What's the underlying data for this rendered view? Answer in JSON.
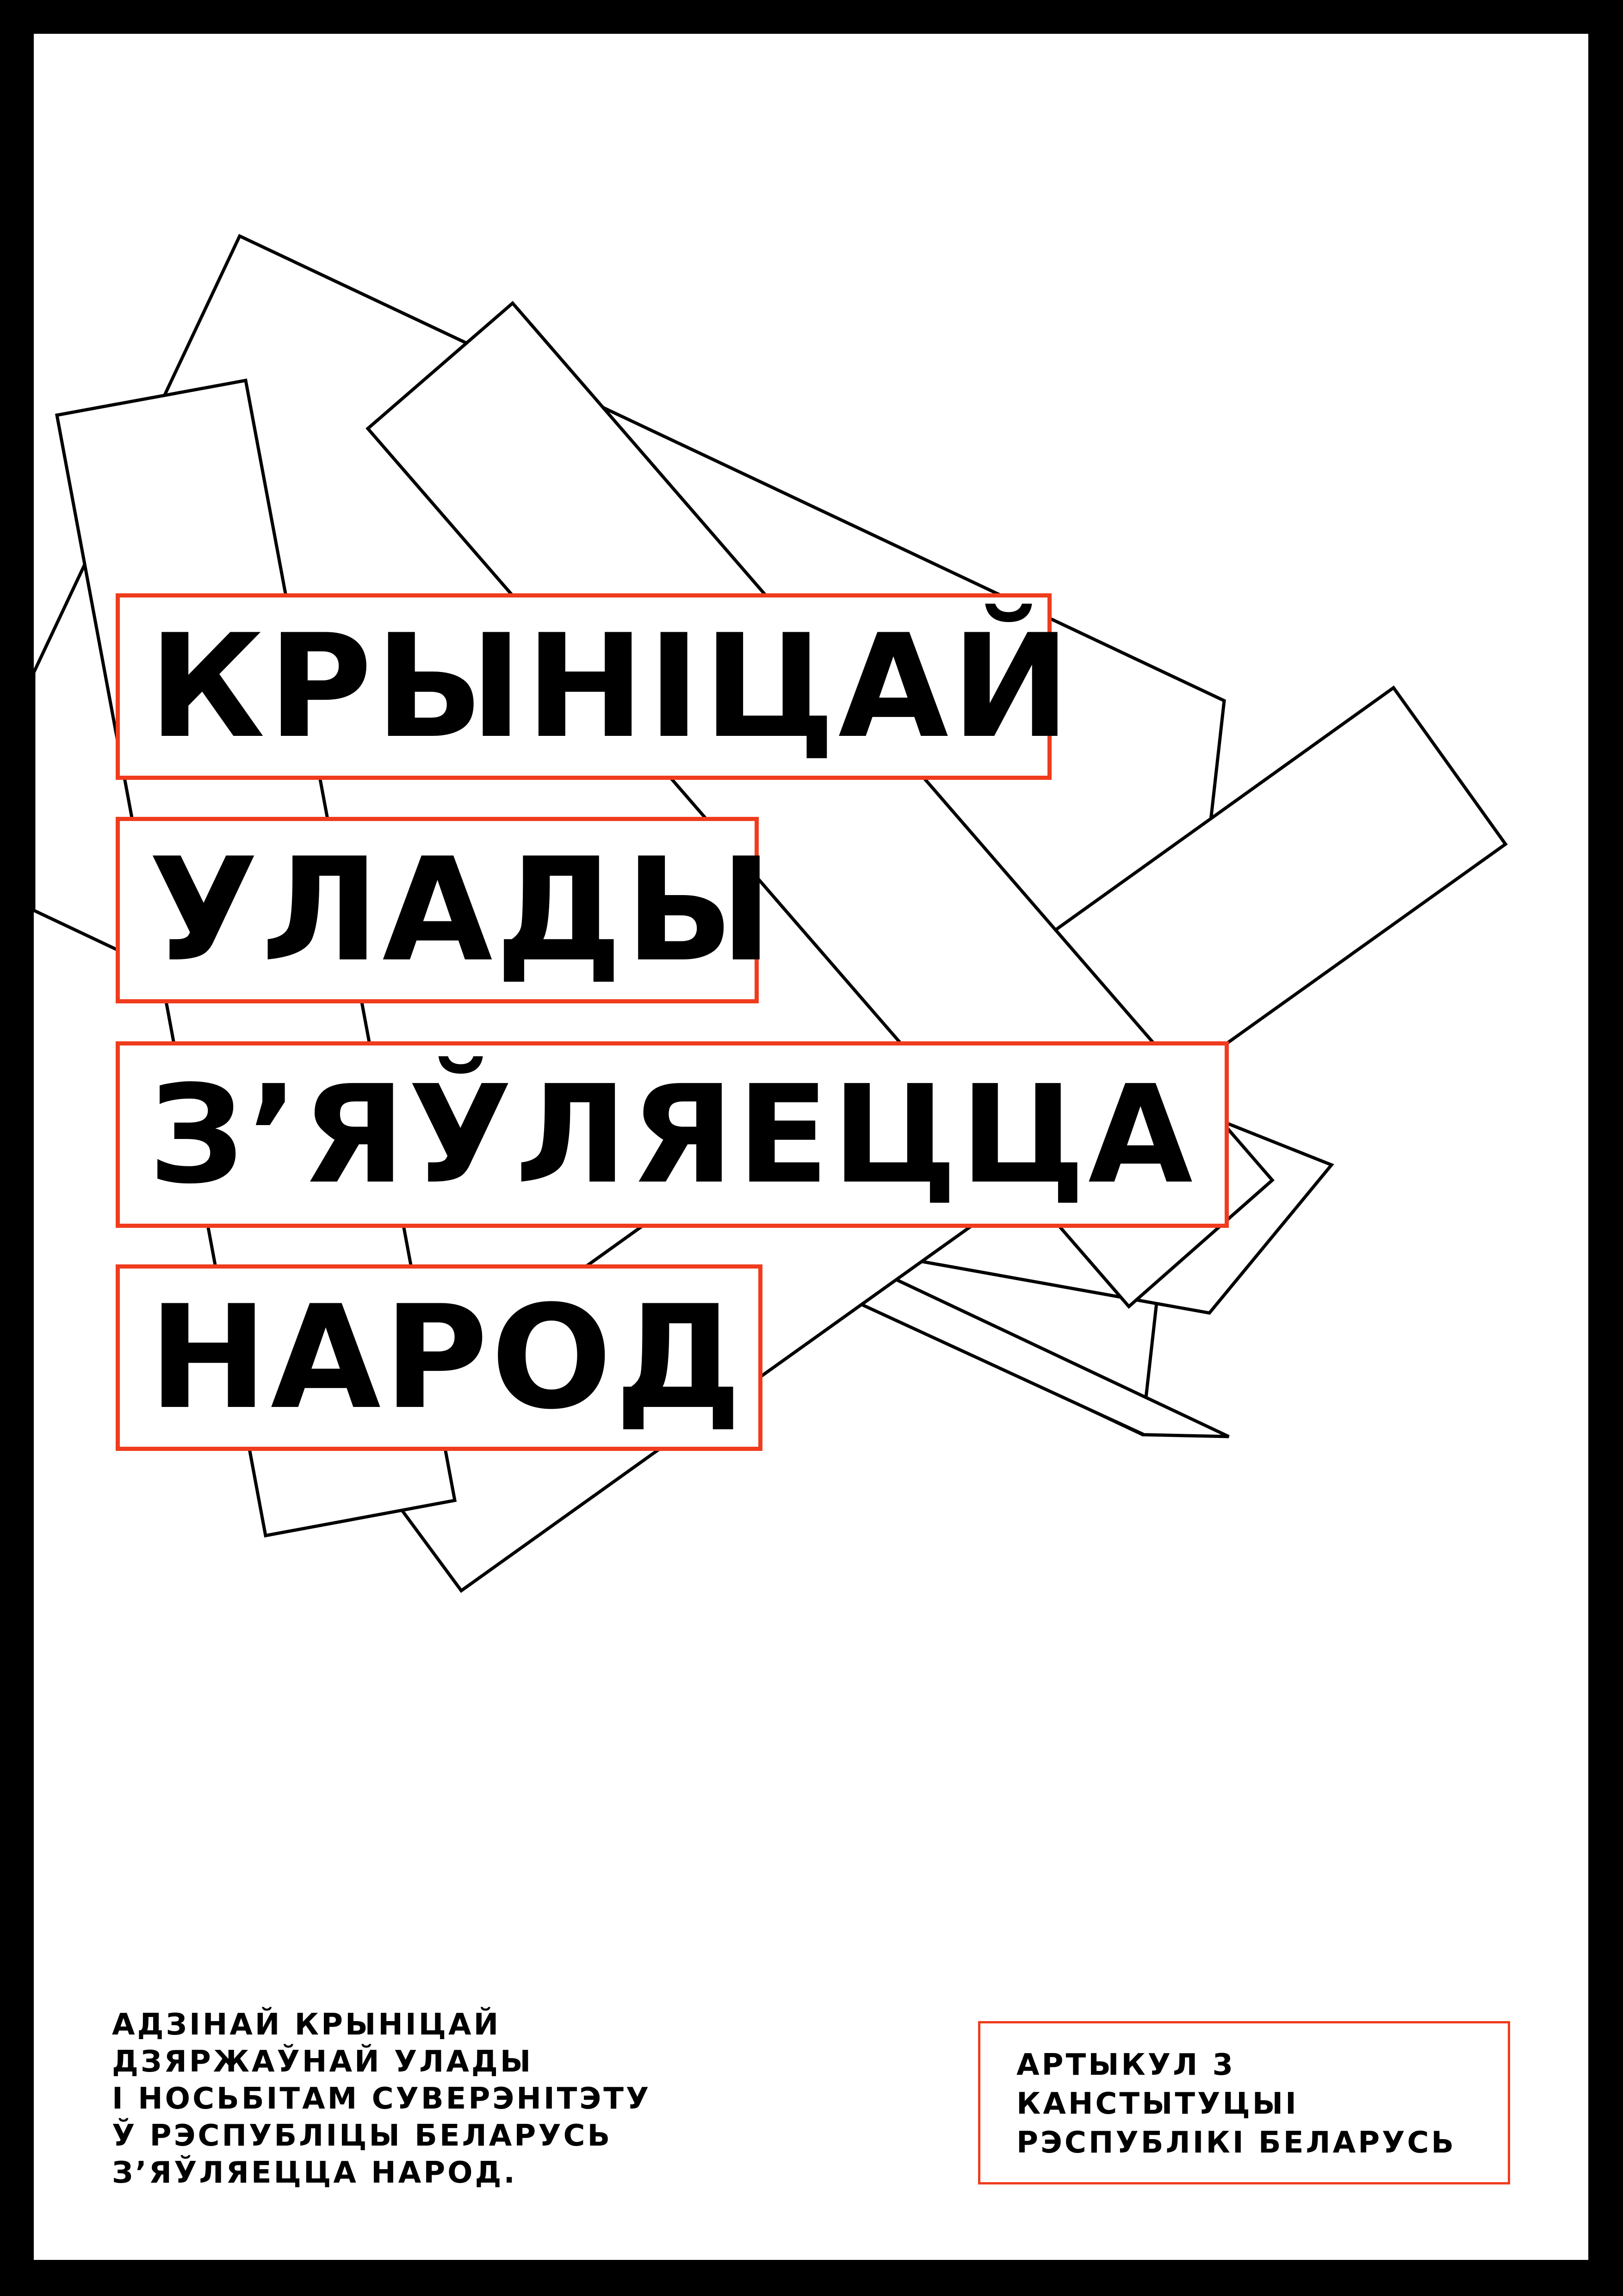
{
  "poster": {
    "headline": [
      "КРЫНІЦАЙ",
      "УЛАДЫ",
      "З’ЯЎЛЯЕЦЦА",
      "НАРОД"
    ],
    "quote_lines": [
      "АДЗІНАЙ КРЫНІЦАЙ",
      "ДЗЯРЖАЎНАЙ УЛАДЫ",
      "І НОСЬБІТАМ СУВЕРЭНІТЭТУ",
      "Ў РЭСПУБЛІЦЫ БЕЛАРУСЬ",
      "З’ЯЎЛЯЕЦЦА НАРОД."
    ],
    "source_lines": [
      "АРТЫКУЛ 3",
      "КАНСТЫТУЦЫІ",
      "РЭСПУБЛІКІ БЕЛАРУСЬ"
    ]
  },
  "colors": {
    "frame": "#000000",
    "background": "#ffffff",
    "accent": "#ef3c1e",
    "text": "#000000",
    "outline": "#000000"
  }
}
